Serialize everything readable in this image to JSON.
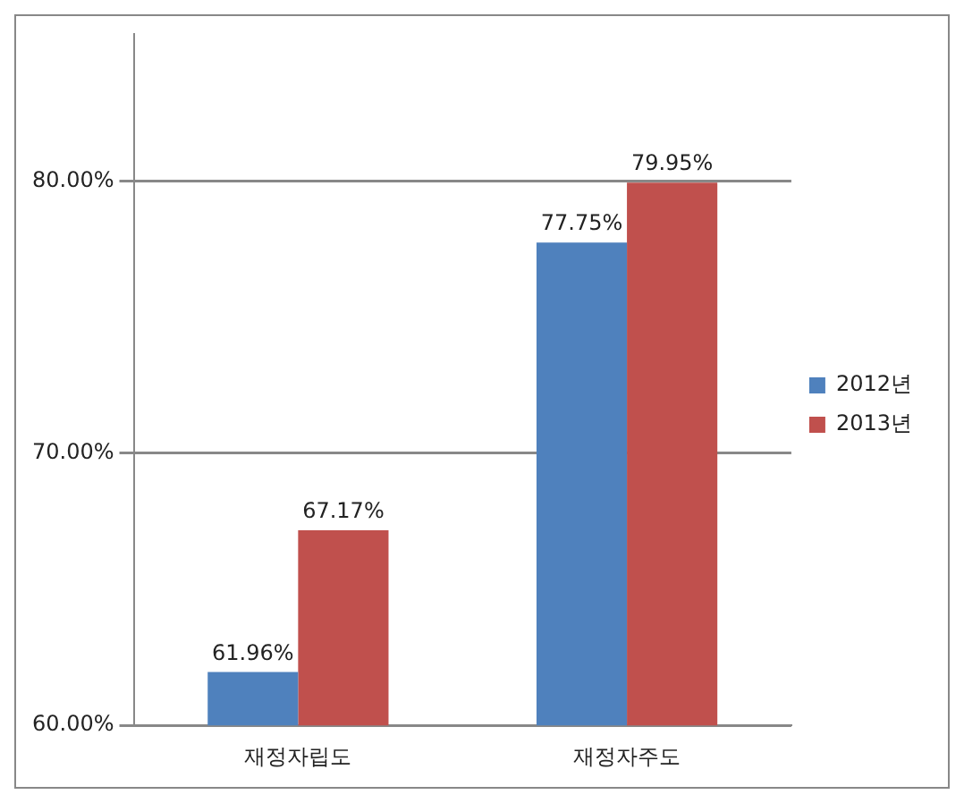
{
  "chart_data": {
    "type": "bar",
    "categories": [
      "재정자립도",
      "재정자주도"
    ],
    "series": [
      {
        "name": "2012년",
        "color": "#4f81bd",
        "values": [
          61.96,
          77.75
        ],
        "value_labels": [
          "61.96%",
          "77.75%"
        ]
      },
      {
        "name": "2013년",
        "color": "#c0504d",
        "values": [
          67.17,
          79.95
        ],
        "value_labels": [
          "67.17%",
          "79.95%"
        ]
      }
    ],
    "ylim": [
      60,
      85.4
    ],
    "yticks": [
      {
        "value": 60,
        "label": "60.00%"
      },
      {
        "value": 70,
        "label": "70.00%"
      },
      {
        "value": 80,
        "label": "80.00%"
      }
    ],
    "grid": "y",
    "legend": "right"
  }
}
